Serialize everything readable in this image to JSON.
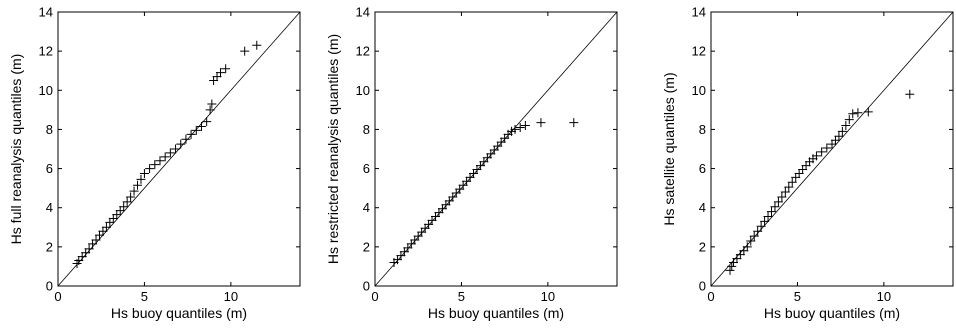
{
  "chart_data": [
    {
      "type": "scatter",
      "marker": "plus",
      "xlabel": "Hs buoy quantiles (m)",
      "ylabel": "Hs full reanalysis quantiles (m)",
      "xlim": [
        0,
        14
      ],
      "ylim": [
        0,
        14
      ],
      "xticks": [
        0,
        5,
        10
      ],
      "yticks": [
        0,
        2,
        4,
        6,
        8,
        10,
        12,
        14
      ],
      "reference_line": "y = x",
      "grid": false,
      "legend": "none",
      "points": [
        [
          1.1,
          1.15
        ],
        [
          1.2,
          1.3
        ],
        [
          1.4,
          1.5
        ],
        [
          1.6,
          1.7
        ],
        [
          1.8,
          1.9
        ],
        [
          2.0,
          2.15
        ],
        [
          2.2,
          2.35
        ],
        [
          2.4,
          2.6
        ],
        [
          2.6,
          2.8
        ],
        [
          2.8,
          3.0
        ],
        [
          3.0,
          3.25
        ],
        [
          3.2,
          3.45
        ],
        [
          3.4,
          3.65
        ],
        [
          3.6,
          3.85
        ],
        [
          3.8,
          4.05
        ],
        [
          4.0,
          4.3
        ],
        [
          4.2,
          4.55
        ],
        [
          4.4,
          4.85
        ],
        [
          4.6,
          5.15
        ],
        [
          4.8,
          5.45
        ],
        [
          5.0,
          5.75
        ],
        [
          5.3,
          6.0
        ],
        [
          5.6,
          6.2
        ],
        [
          5.9,
          6.4
        ],
        [
          6.2,
          6.6
        ],
        [
          6.5,
          6.8
        ],
        [
          6.8,
          7.0
        ],
        [
          7.1,
          7.25
        ],
        [
          7.4,
          7.5
        ],
        [
          7.7,
          7.75
        ],
        [
          8.0,
          7.95
        ],
        [
          8.3,
          8.15
        ],
        [
          8.6,
          8.4
        ],
        [
          8.8,
          9.0
        ],
        [
          8.9,
          9.3
        ],
        [
          9.0,
          10.5
        ],
        [
          9.2,
          10.7
        ],
        [
          9.4,
          10.9
        ],
        [
          9.7,
          11.1
        ],
        [
          10.8,
          12.0
        ],
        [
          11.5,
          12.3
        ]
      ]
    },
    {
      "type": "scatter",
      "marker": "plus",
      "xlabel": "Hs buoy quantiles (m)",
      "ylabel": "Hs restricted reanalysis quantiles (m)",
      "xlim": [
        0,
        14
      ],
      "ylim": [
        0,
        14
      ],
      "xticks": [
        0,
        5,
        10
      ],
      "yticks": [
        0,
        2,
        4,
        6,
        8,
        10,
        12,
        14
      ],
      "reference_line": "y = x",
      "grid": false,
      "legend": "none",
      "points": [
        [
          1.1,
          1.2
        ],
        [
          1.3,
          1.35
        ],
        [
          1.5,
          1.55
        ],
        [
          1.7,
          1.75
        ],
        [
          1.9,
          1.95
        ],
        [
          2.1,
          2.15
        ],
        [
          2.3,
          2.35
        ],
        [
          2.5,
          2.55
        ],
        [
          2.7,
          2.75
        ],
        [
          2.9,
          2.95
        ],
        [
          3.1,
          3.15
        ],
        [
          3.3,
          3.35
        ],
        [
          3.5,
          3.55
        ],
        [
          3.7,
          3.75
        ],
        [
          3.9,
          3.95
        ],
        [
          4.1,
          4.15
        ],
        [
          4.3,
          4.35
        ],
        [
          4.5,
          4.55
        ],
        [
          4.7,
          4.75
        ],
        [
          4.9,
          4.95
        ],
        [
          5.1,
          5.15
        ],
        [
          5.3,
          5.35
        ],
        [
          5.5,
          5.55
        ],
        [
          5.7,
          5.75
        ],
        [
          5.9,
          5.95
        ],
        [
          6.1,
          6.15
        ],
        [
          6.3,
          6.35
        ],
        [
          6.5,
          6.55
        ],
        [
          6.7,
          6.75
        ],
        [
          6.9,
          6.95
        ],
        [
          7.1,
          7.15
        ],
        [
          7.3,
          7.35
        ],
        [
          7.5,
          7.55
        ],
        [
          7.7,
          7.75
        ],
        [
          7.9,
          7.9
        ],
        [
          8.1,
          8.0
        ],
        [
          8.4,
          8.1
        ],
        [
          8.7,
          8.2
        ],
        [
          9.6,
          8.35
        ],
        [
          11.5,
          8.35
        ]
      ]
    },
    {
      "type": "scatter",
      "marker": "plus",
      "xlabel": "Hs buoy quantiles (m)",
      "ylabel": "Hs satellite quantiles (m)",
      "xlim": [
        0,
        14
      ],
      "ylim": [
        0,
        14
      ],
      "xticks": [
        0,
        5,
        10
      ],
      "yticks": [
        0,
        2,
        4,
        6,
        8,
        10,
        12,
        14
      ],
      "reference_line": "y = x",
      "grid": false,
      "legend": "none",
      "points": [
        [
          1.1,
          0.8
        ],
        [
          1.2,
          1.0
        ],
        [
          1.3,
          1.2
        ],
        [
          1.5,
          1.4
        ],
        [
          1.7,
          1.6
        ],
        [
          1.9,
          1.8
        ],
        [
          2.1,
          2.0
        ],
        [
          2.3,
          2.3
        ],
        [
          2.5,
          2.55
        ],
        [
          2.7,
          2.8
        ],
        [
          2.9,
          3.05
        ],
        [
          3.1,
          3.3
        ],
        [
          3.3,
          3.55
        ],
        [
          3.5,
          3.8
        ],
        [
          3.7,
          4.05
        ],
        [
          3.9,
          4.3
        ],
        [
          4.1,
          4.55
        ],
        [
          4.3,
          4.8
        ],
        [
          4.5,
          5.05
        ],
        [
          4.7,
          5.3
        ],
        [
          4.9,
          5.55
        ],
        [
          5.1,
          5.75
        ],
        [
          5.3,
          5.95
        ],
        [
          5.5,
          6.15
        ],
        [
          5.7,
          6.35
        ],
        [
          5.9,
          6.5
        ],
        [
          6.1,
          6.65
        ],
        [
          6.4,
          6.85
        ],
        [
          6.7,
          7.05
        ],
        [
          7.0,
          7.25
        ],
        [
          7.2,
          7.45
        ],
        [
          7.4,
          7.65
        ],
        [
          7.6,
          7.9
        ],
        [
          7.8,
          8.2
        ],
        [
          8.0,
          8.5
        ],
        [
          8.2,
          8.8
        ],
        [
          8.5,
          8.85
        ],
        [
          9.1,
          8.9
        ],
        [
          11.5,
          9.8
        ]
      ]
    }
  ]
}
